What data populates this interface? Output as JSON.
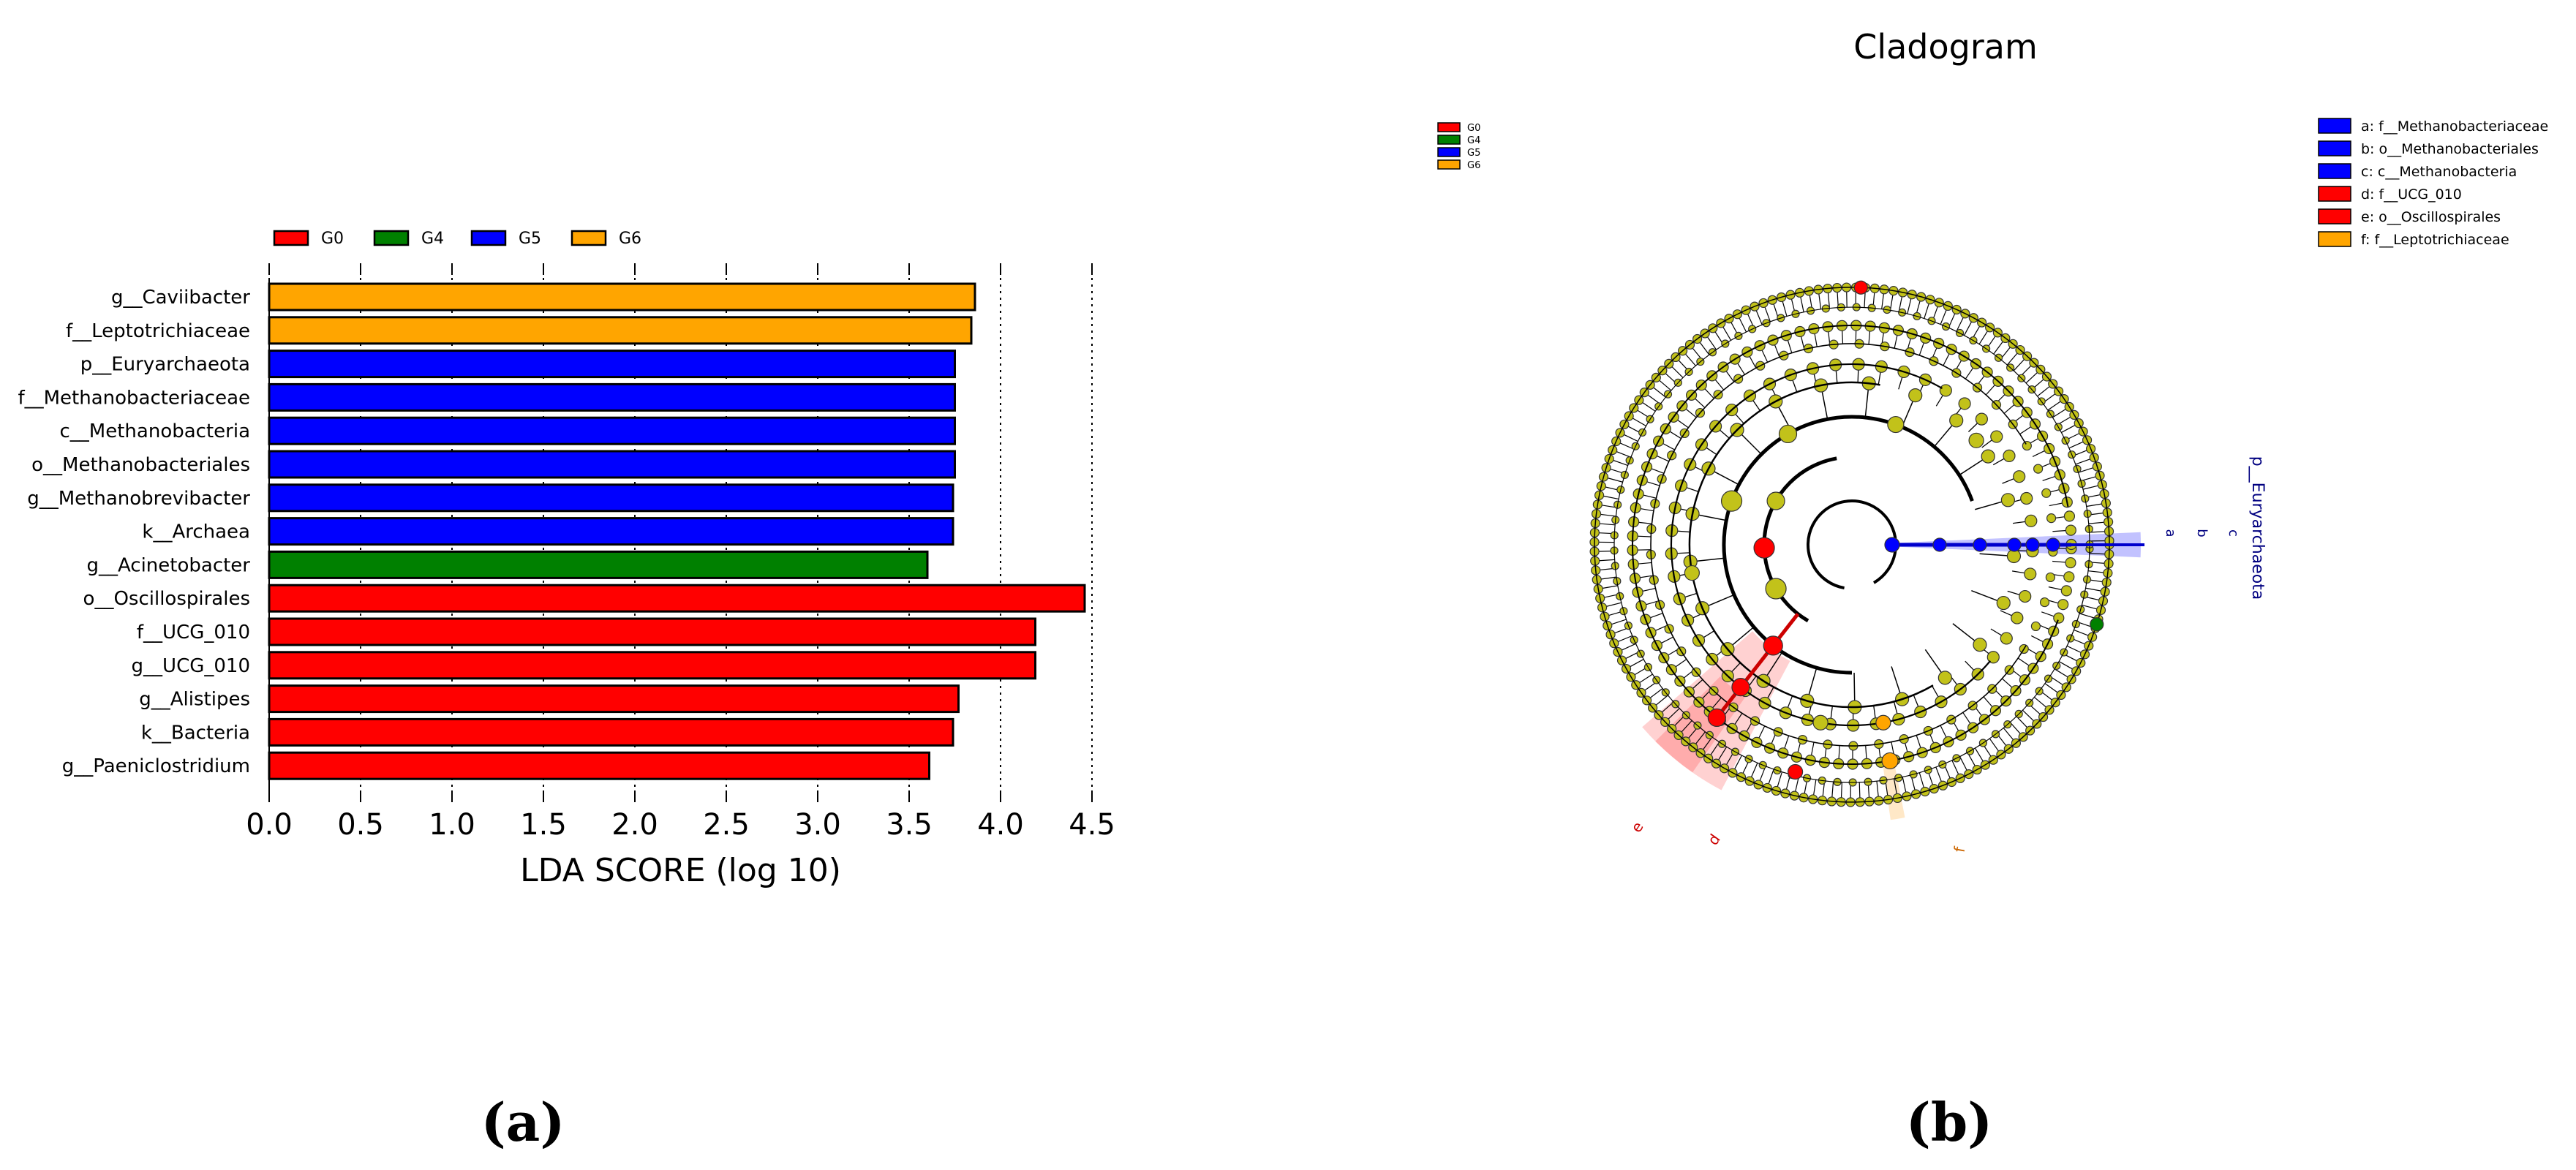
{
  "chart_data": [
    {
      "type": "bar",
      "orientation": "horizontal",
      "categories": [
        "g__Caviibacter",
        "f__Leptotrichiaceae",
        "p__Euryarchaeota",
        "f__Methanobacteriaceae",
        "c__Methanobacteria",
        "o__Methanobacteriales",
        "g__Methanobrevibacter",
        "k__Archaea",
        "g__Acinetobacter",
        "o__Oscillospirales",
        "f__UCG_010",
        "g__UCG_010",
        "g__Alistipes",
        "k__Bacteria",
        "g__Paeniclostridium"
      ],
      "values": [
        3.86,
        3.84,
        3.75,
        3.75,
        3.75,
        3.75,
        3.74,
        3.74,
        3.6,
        4.46,
        4.19,
        4.19,
        3.77,
        3.74,
        3.61
      ],
      "groups": [
        "G6",
        "G6",
        "G5",
        "G5",
        "G5",
        "G5",
        "G5",
        "G5",
        "G4",
        "G0",
        "G0",
        "G0",
        "G0",
        "G0",
        "G0"
      ],
      "legend": [
        {
          "name": "G0",
          "color": "#ff0000"
        },
        {
          "name": "G4",
          "color": "#008000"
        },
        {
          "name": "G5",
          "color": "#0000ff"
        },
        {
          "name": "G6",
          "color": "#ffa500"
        }
      ],
      "xticks": [
        "0.0",
        "0.5",
        "1.0",
        "1.5",
        "2.0",
        "2.5",
        "3.0",
        "3.5",
        "4.0",
        "4.5"
      ],
      "xlim": [
        0,
        4.5
      ],
      "xlabel": "LDA SCORE (log 10)",
      "grid": "vertical dotted",
      "legend_placement": "top"
    },
    {
      "type": "cladogram",
      "title": "Cladogram",
      "legend_groups": [
        {
          "name": "G0",
          "color": "#ff0000"
        },
        {
          "name": "G4",
          "color": "#008000"
        },
        {
          "name": "G5",
          "color": "#0000ff"
        },
        {
          "name": "G6",
          "color": "#ffa500"
        }
      ],
      "legend_taxa": [
        {
          "label": "a: f__Methanobacteriaceae",
          "color": "#0000ff"
        },
        {
          "label": "b: o__Methanobacteriales",
          "color": "#0000ff"
        },
        {
          "label": "c: c__Methanobacteria",
          "color": "#0000ff"
        },
        {
          "label": "d: f__UCG_010",
          "color": "#ff0000"
        },
        {
          "label": "e: o__Oscillospirales",
          "color": "#ff0000"
        },
        {
          "label": "f: f__Leptotrichiaceae",
          "color": "#ffa500"
        }
      ],
      "sector_labels": [
        "p__Euryarchaeota",
        "a",
        "b",
        "c",
        "d",
        "e",
        "f"
      ],
      "node_color_default": "#c2c21a"
    }
  ],
  "panel_labels": {
    "a": "(a)",
    "b": "(b)"
  }
}
